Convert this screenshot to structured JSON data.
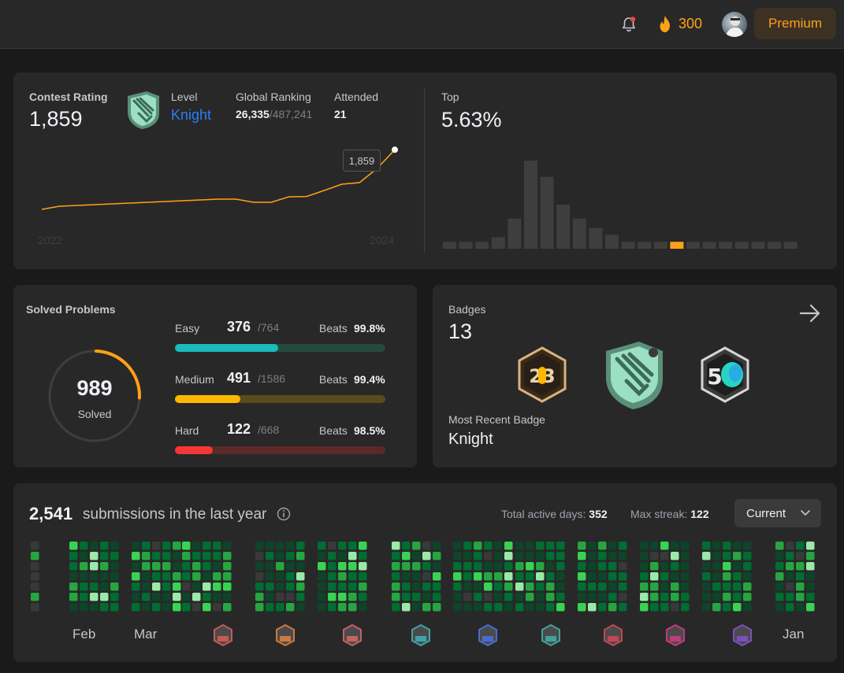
{
  "topbar": {
    "streak_count": "300",
    "premium_label": "Premium",
    "colors": {
      "accent": "#ffa116",
      "notification_dot": "#ef4743"
    }
  },
  "contest": {
    "rating_label": "Contest Rating",
    "rating_value": "1,859",
    "level_label": "Level",
    "level_value": "Knight",
    "ranking_label": "Global Ranking",
    "ranking_value": "26,335",
    "ranking_total": "/487,241",
    "attended_label": "Attended",
    "attended_value": "21",
    "top_label": "Top",
    "top_value": "5.63%",
    "tooltip_value": "1,859",
    "year_start": "2022",
    "year_end": "2024"
  },
  "chart_data": [
    {
      "type": "line",
      "x": [
        "2022",
        "",
        "",
        "",
        "",
        "",
        "",
        "",
        "",
        "",
        "",
        "",
        "",
        "",
        "",
        "",
        "",
        "",
        "",
        "",
        "2024"
      ],
      "series": [
        {
          "values": [
            1480,
            1500,
            1505,
            1510,
            1515,
            1520,
            1525,
            1530,
            1535,
            1540,
            1545,
            1545,
            1525,
            1525,
            1560,
            1562,
            1600,
            1640,
            1650,
            1740,
            1859
          ]
        }
      ],
      "ylim": [
        1400,
        1900
      ],
      "grid": false
    },
    {
      "type": "bar",
      "values": [
        3,
        3,
        3,
        5,
        13,
        38,
        31,
        19,
        13,
        9,
        6,
        3,
        3,
        3,
        3,
        3,
        3,
        3,
        3,
        3,
        3,
        3
      ],
      "highlight_index": 14,
      "colors": {
        "bar": "#3e3e3e",
        "highlight": "#ffa116"
      }
    }
  ],
  "solved": {
    "title": "Solved Problems",
    "total": "989",
    "total_label": "Solved",
    "easy": {
      "label": "Easy",
      "count": "376",
      "total": "/764",
      "beats_label": "Beats",
      "beats_value": "99.8%",
      "fraction": 0.49,
      "color": "#1cbaba",
      "track": "#244a3e"
    },
    "medium": {
      "label": "Medium",
      "count": "491",
      "total": "/1586",
      "beats_label": "Beats",
      "beats_value": "99.4%",
      "fraction": 0.31,
      "color": "#ffb700",
      "track": "#5a4b1d"
    },
    "hard": {
      "label": "Hard",
      "count": "122",
      "total": "/668",
      "beats_label": "Beats",
      "beats_value": "98.5%",
      "fraction": 0.18,
      "color": "#f63737",
      "track": "#5a2a28"
    }
  },
  "badges": {
    "title": "Badges",
    "count": "13",
    "recent_label": "Most Recent Badge",
    "recent_value": "Knight",
    "items": [
      "badge-2023-icon",
      "badge-knight-icon",
      "badge-50-days-icon"
    ]
  },
  "heatmap": {
    "count": "2,541",
    "label": "submissions in the last year",
    "active_days_label": "Total active days:",
    "active_days_value": "352",
    "max_streak_label": "Max streak:",
    "max_streak_value": "122",
    "period": "Current",
    "months": [
      "Feb",
      "Mar",
      "",
      "",
      "",
      "",
      "",
      "",
      "",
      "",
      "",
      "Jan"
    ],
    "colors": [
      "#2a2a2a",
      "#393939",
      "#0e4429",
      "#006d32",
      "#26a641",
      "#39d353",
      "#9be9a8"
    ]
  }
}
